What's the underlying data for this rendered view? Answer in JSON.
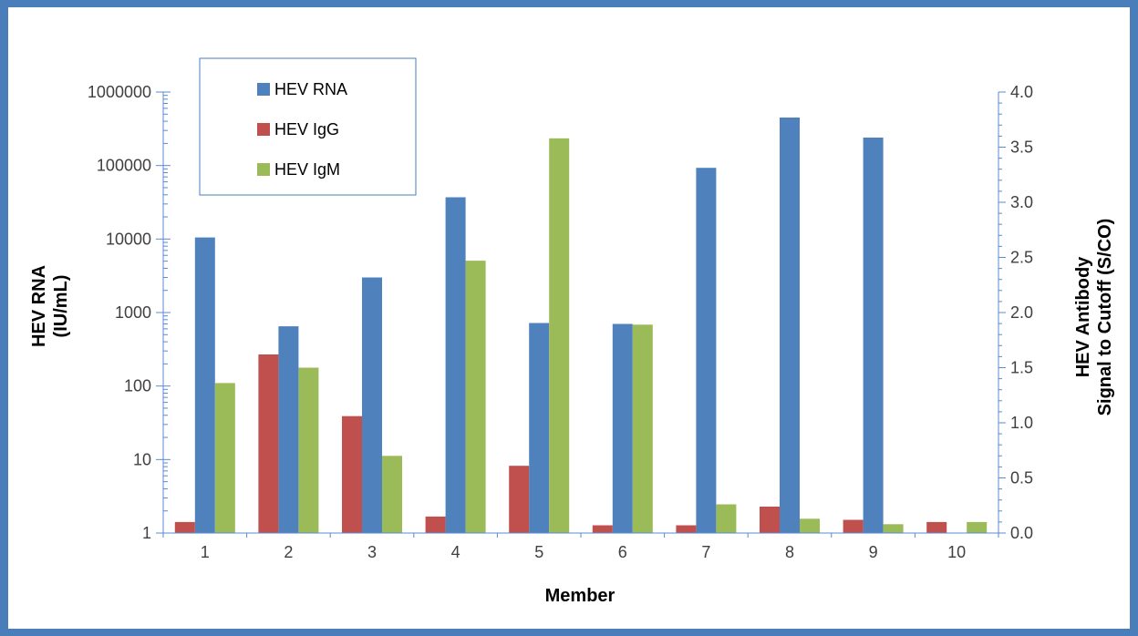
{
  "colors": {
    "frame": "#4a7ebb",
    "axis": "#5b8bd0",
    "rna": "#4f81bd",
    "igg": "#c0504d",
    "igm": "#9bbb59",
    "legend_border": "#4a7ebb"
  },
  "chart_data": {
    "type": "bar",
    "title": "",
    "xlabel": "Member",
    "ylabel_left": [
      "HEV RNA",
      "(IU/mL)"
    ],
    "ylabel_right": [
      "HEV Antibody",
      "Signal to Cutoff (S/CO)"
    ],
    "categories": [
      "1",
      "2",
      "3",
      "4",
      "5",
      "6",
      "7",
      "8",
      "9",
      "10"
    ],
    "left_axis": {
      "scale": "log",
      "range": [
        1,
        1000000
      ],
      "ticks": [
        "1",
        "10",
        "100",
        "1000",
        "10000",
        "100000",
        "1000000"
      ]
    },
    "right_axis": {
      "scale": "linear",
      "range": [
        0,
        4
      ],
      "ticks": [
        "0.0",
        "0.5",
        "1.0",
        "1.5",
        "2.0",
        "2.5",
        "3.0",
        "3.5",
        "4.0"
      ]
    },
    "legend_position": "top-left",
    "series": [
      {
        "name": "HEV RNA",
        "axis": "left",
        "values": [
          10500,
          650,
          3000,
          37000,
          720,
          700,
          93000,
          450000,
          240000,
          null
        ]
      },
      {
        "name": "HEV IgG",
        "axis": "right",
        "values": [
          0.1,
          1.62,
          1.06,
          0.15,
          0.61,
          0.07,
          0.07,
          0.24,
          0.12,
          0.1
        ]
      },
      {
        "name": "HEV IgM",
        "axis": "right",
        "values": [
          1.36,
          1.5,
          0.7,
          2.47,
          3.58,
          1.89,
          0.26,
          0.13,
          0.08,
          0.1
        ]
      }
    ]
  }
}
